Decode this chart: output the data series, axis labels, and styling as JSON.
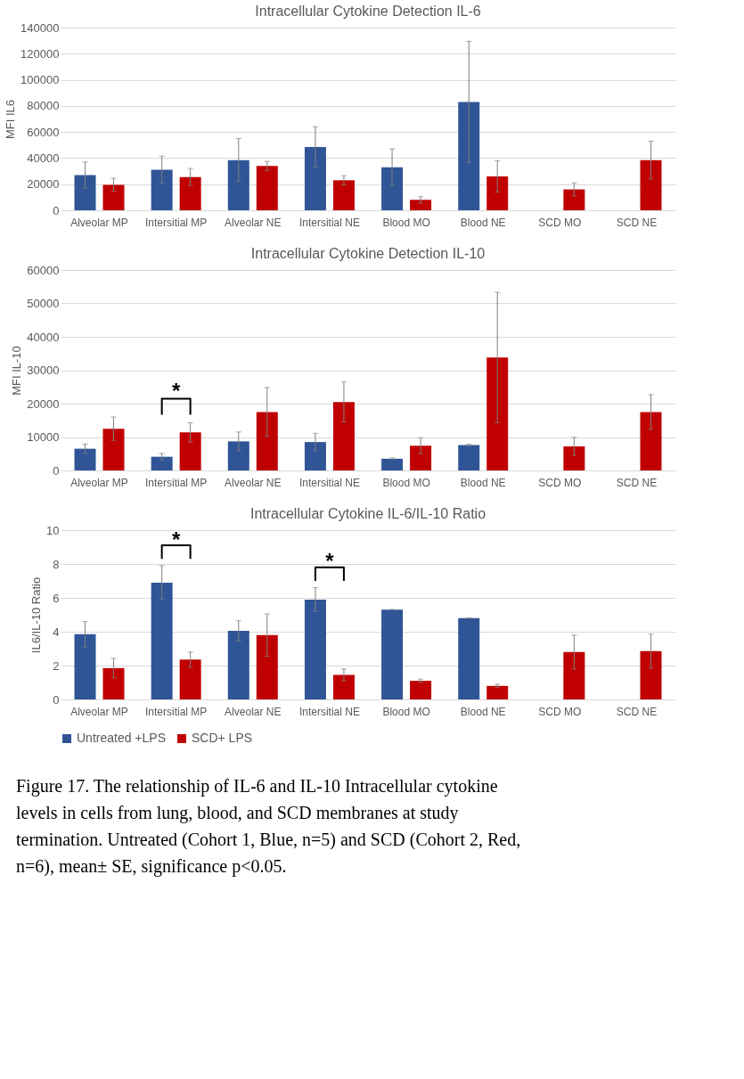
{
  "chart_data": [
    {
      "type": "bar",
      "title": "Intracellular Cytokine Detection IL-6",
      "ylabel": "MFI IL6",
      "categories": [
        "Alveolar MP",
        "Intersitial MP",
        "Alveolar NE",
        "Intersitial NE",
        "Blood MO",
        "Blood NE",
        "SCD MO",
        "SCD NE"
      ],
      "series": [
        {
          "color": "#2f5597",
          "values": [
            27000,
            31000,
            38500,
            48500,
            33000,
            83000,
            null,
            null
          ],
          "errors": [
            10000,
            10500,
            16500,
            15500,
            14000,
            46500,
            null,
            null
          ]
        },
        {
          "color": "#c00000",
          "values": [
            19500,
            25500,
            34000,
            23000,
            8000,
            26000,
            16000,
            38500
          ],
          "errors": [
            5000,
            6500,
            3500,
            3500,
            2500,
            12000,
            5000,
            14500
          ]
        }
      ],
      "ylim": [
        0,
        140000
      ],
      "yticks": [
        0,
        20000,
        40000,
        60000,
        80000,
        100000,
        120000,
        140000
      ],
      "grid": "y"
    },
    {
      "type": "bar",
      "title": "Intracellular Cytokine Detection IL-10",
      "ylabel": "MFI IL-10",
      "categories": [
        "Alveolar MP",
        "Intersitial MP",
        "Alveolar NE",
        "Intersitial NE",
        "Blood MO",
        "Blood NE",
        "SCD MO",
        "SCD NE"
      ],
      "series": [
        {
          "color": "#2f5597",
          "values": [
            6500,
            4100,
            8700,
            8500,
            3500,
            7600,
            null,
            null
          ],
          "errors": [
            1400,
            1000,
            2800,
            2600,
            200,
            200,
            null,
            null
          ]
        },
        {
          "color": "#c00000",
          "values": [
            12500,
            11400,
            17500,
            20500,
            7400,
            33800,
            7200,
            17500
          ],
          "errors": [
            3500,
            2900,
            7300,
            6000,
            2400,
            19500,
            2700,
            5200
          ]
        }
      ],
      "ylim": [
        0,
        60000
      ],
      "yticks": [
        0,
        10000,
        20000,
        30000,
        40000,
        50000,
        60000
      ],
      "grid": "y",
      "annotations": [
        "*"
      ]
    },
    {
      "type": "bar",
      "title": "Intracellular Cytokine IL-6/IL-10 Ratio",
      "ylabel": "IL6/IL-10 Ratio",
      "categories": [
        "Alveolar MP",
        "Intersitial MP",
        "Alveolar NE",
        "Intersitial NE",
        "Blood MO",
        "Blood NE",
        "SCD MO",
        "SCD NE"
      ],
      "series": [
        {
          "name": "Untreated +LPS",
          "color": "#2f5597",
          "values": [
            3.85,
            6.9,
            4.05,
            5.9,
            5.3,
            4.8,
            null,
            null
          ],
          "errors": [
            0.75,
            1.0,
            0.6,
            0.7,
            0.02,
            0.02,
            null,
            null
          ]
        },
        {
          "name": "SCD+ LPS",
          "color": "#c00000",
          "values": [
            1.85,
            2.35,
            3.8,
            1.45,
            1.1,
            0.8,
            2.8,
            2.85
          ],
          "errors": [
            0.57,
            0.45,
            1.25,
            0.35,
            0.1,
            0.1,
            1.0,
            1.0
          ]
        }
      ],
      "ylim": [
        0,
        10
      ],
      "yticks": [
        0,
        2,
        4,
        6,
        8,
        10
      ],
      "grid": "y",
      "legend": "bottom",
      "annotations": [
        "*",
        "*",
        "Figure 17. The relationship of IL-6 and IL-10 Intracellular cytokine levels in cells from lung, blood, and SCD membranes at study termination. Untreated (Cohort 1, Blue, n=5) and SCD (Cohort 2, Red, n=6), mean± SE, significance p<0.05."
      ]
    }
  ]
}
